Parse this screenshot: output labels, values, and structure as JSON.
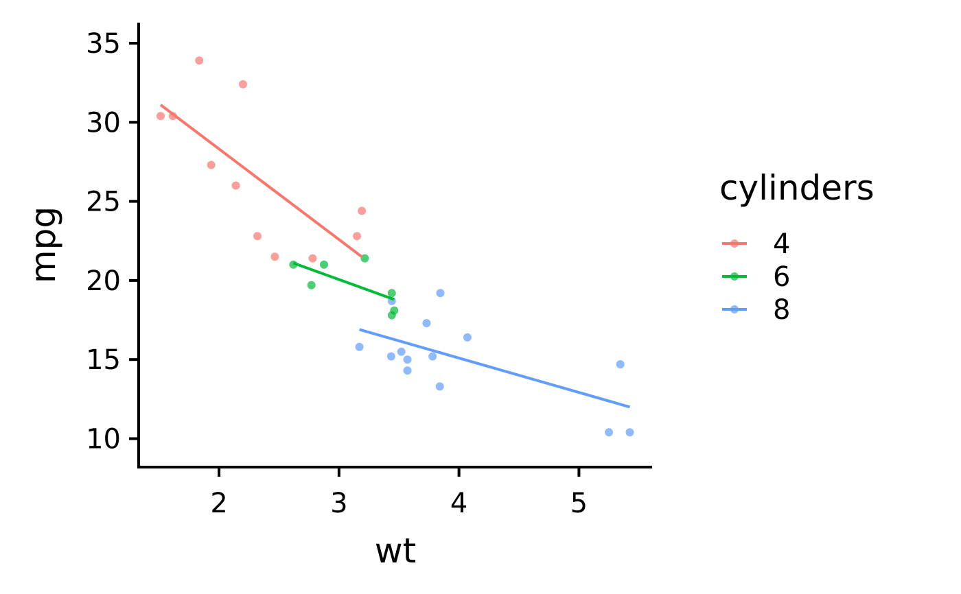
{
  "chart_data": {
    "type": "scatter",
    "xlabel": "wt",
    "ylabel": "mpg",
    "xlim": [
      1.33,
      5.61
    ],
    "ylim": [
      8.2,
      36.3
    ],
    "x_ticks": [
      2,
      3,
      4,
      5
    ],
    "y_ticks": [
      10,
      15,
      20,
      25,
      30,
      35
    ],
    "grid": false,
    "legend": {
      "title": "cylinders",
      "position": "right"
    },
    "series": [
      {
        "name": "4",
        "color": "#F8766D",
        "points": [
          {
            "x": 1.513,
            "y": 30.4
          },
          {
            "x": 1.615,
            "y": 30.4
          },
          {
            "x": 1.835,
            "y": 33.9
          },
          {
            "x": 1.935,
            "y": 27.3
          },
          {
            "x": 2.14,
            "y": 26.0
          },
          {
            "x": 2.2,
            "y": 32.4
          },
          {
            "x": 2.32,
            "y": 22.8
          },
          {
            "x": 2.465,
            "y": 21.5
          },
          {
            "x": 2.78,
            "y": 21.4
          },
          {
            "x": 3.15,
            "y": 22.8
          },
          {
            "x": 3.19,
            "y": 24.4
          }
        ],
        "fit": [
          {
            "x": 1.513,
            "y": 31.1
          },
          {
            "x": 3.19,
            "y": 21.5
          }
        ]
      },
      {
        "name": "6",
        "color": "#00BA38",
        "points": [
          {
            "x": 2.62,
            "y": 21.0
          },
          {
            "x": 2.77,
            "y": 19.7
          },
          {
            "x": 2.875,
            "y": 21.0
          },
          {
            "x": 3.215,
            "y": 21.4
          },
          {
            "x": 3.44,
            "y": 17.8
          },
          {
            "x": 3.44,
            "y": 19.2
          },
          {
            "x": 3.46,
            "y": 18.1
          }
        ],
        "fit": [
          {
            "x": 2.62,
            "y": 21.1
          },
          {
            "x": 3.46,
            "y": 18.8
          }
        ]
      },
      {
        "name": "8",
        "color": "#619CFF",
        "points": [
          {
            "x": 3.17,
            "y": 15.8
          },
          {
            "x": 3.435,
            "y": 15.2
          },
          {
            "x": 3.44,
            "y": 18.7
          },
          {
            "x": 3.52,
            "y": 15.5
          },
          {
            "x": 3.57,
            "y": 14.3
          },
          {
            "x": 3.57,
            "y": 15.0
          },
          {
            "x": 3.73,
            "y": 17.3
          },
          {
            "x": 3.78,
            "y": 15.2
          },
          {
            "x": 3.84,
            "y": 13.3
          },
          {
            "x": 3.845,
            "y": 19.2
          },
          {
            "x": 4.07,
            "y": 16.4
          },
          {
            "x": 5.25,
            "y": 10.4
          },
          {
            "x": 5.345,
            "y": 14.7
          },
          {
            "x": 5.424,
            "y": 10.4
          }
        ],
        "fit": [
          {
            "x": 3.17,
            "y": 16.9
          },
          {
            "x": 5.424,
            "y": 12.0
          }
        ]
      }
    ]
  }
}
